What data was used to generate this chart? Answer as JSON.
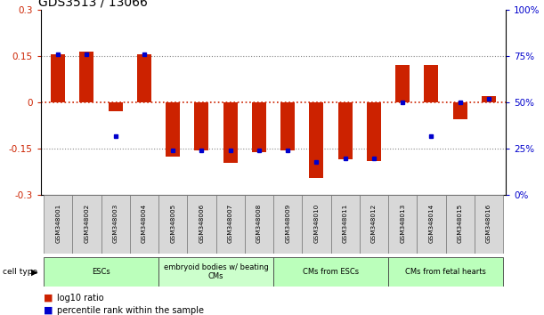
{
  "title": "GDS3513 / 13066",
  "samples": [
    "GSM348001",
    "GSM348002",
    "GSM348003",
    "GSM348004",
    "GSM348005",
    "GSM348006",
    "GSM348007",
    "GSM348008",
    "GSM348009",
    "GSM348010",
    "GSM348011",
    "GSM348012",
    "GSM348013",
    "GSM348014",
    "GSM348015",
    "GSM348016"
  ],
  "log10_ratio": [
    0.155,
    0.165,
    -0.03,
    0.155,
    -0.175,
    -0.155,
    -0.195,
    -0.16,
    -0.155,
    -0.245,
    -0.185,
    -0.19,
    0.12,
    0.12,
    -0.055,
    0.02
  ],
  "percentile_rank": [
    76,
    76,
    32,
    76,
    24,
    24,
    24,
    24,
    24,
    18,
    20,
    20,
    50,
    32,
    50,
    52
  ],
  "cell_type_groups": [
    {
      "label": "ESCs",
      "start": 0,
      "end": 3,
      "color": "#bbffbb"
    },
    {
      "label": "embryoid bodies w/ beating\nCMs",
      "start": 4,
      "end": 7,
      "color": "#ccffcc"
    },
    {
      "label": "CMs from ESCs",
      "start": 8,
      "end": 11,
      "color": "#bbffbb"
    },
    {
      "label": "CMs from fetal hearts",
      "start": 12,
      "end": 15,
      "color": "#bbffbb"
    }
  ],
  "ylim": [
    -0.3,
    0.3
  ],
  "yticks_left": [
    -0.3,
    -0.15,
    0.0,
    0.15,
    0.3
  ],
  "yticks_right": [
    0,
    25,
    50,
    75,
    100
  ],
  "bar_color": "#cc2200",
  "dot_color": "#0000cc",
  "background_color": "#ffffff",
  "dotted_line_color": "#888888",
  "zero_line_color": "#cc2200"
}
